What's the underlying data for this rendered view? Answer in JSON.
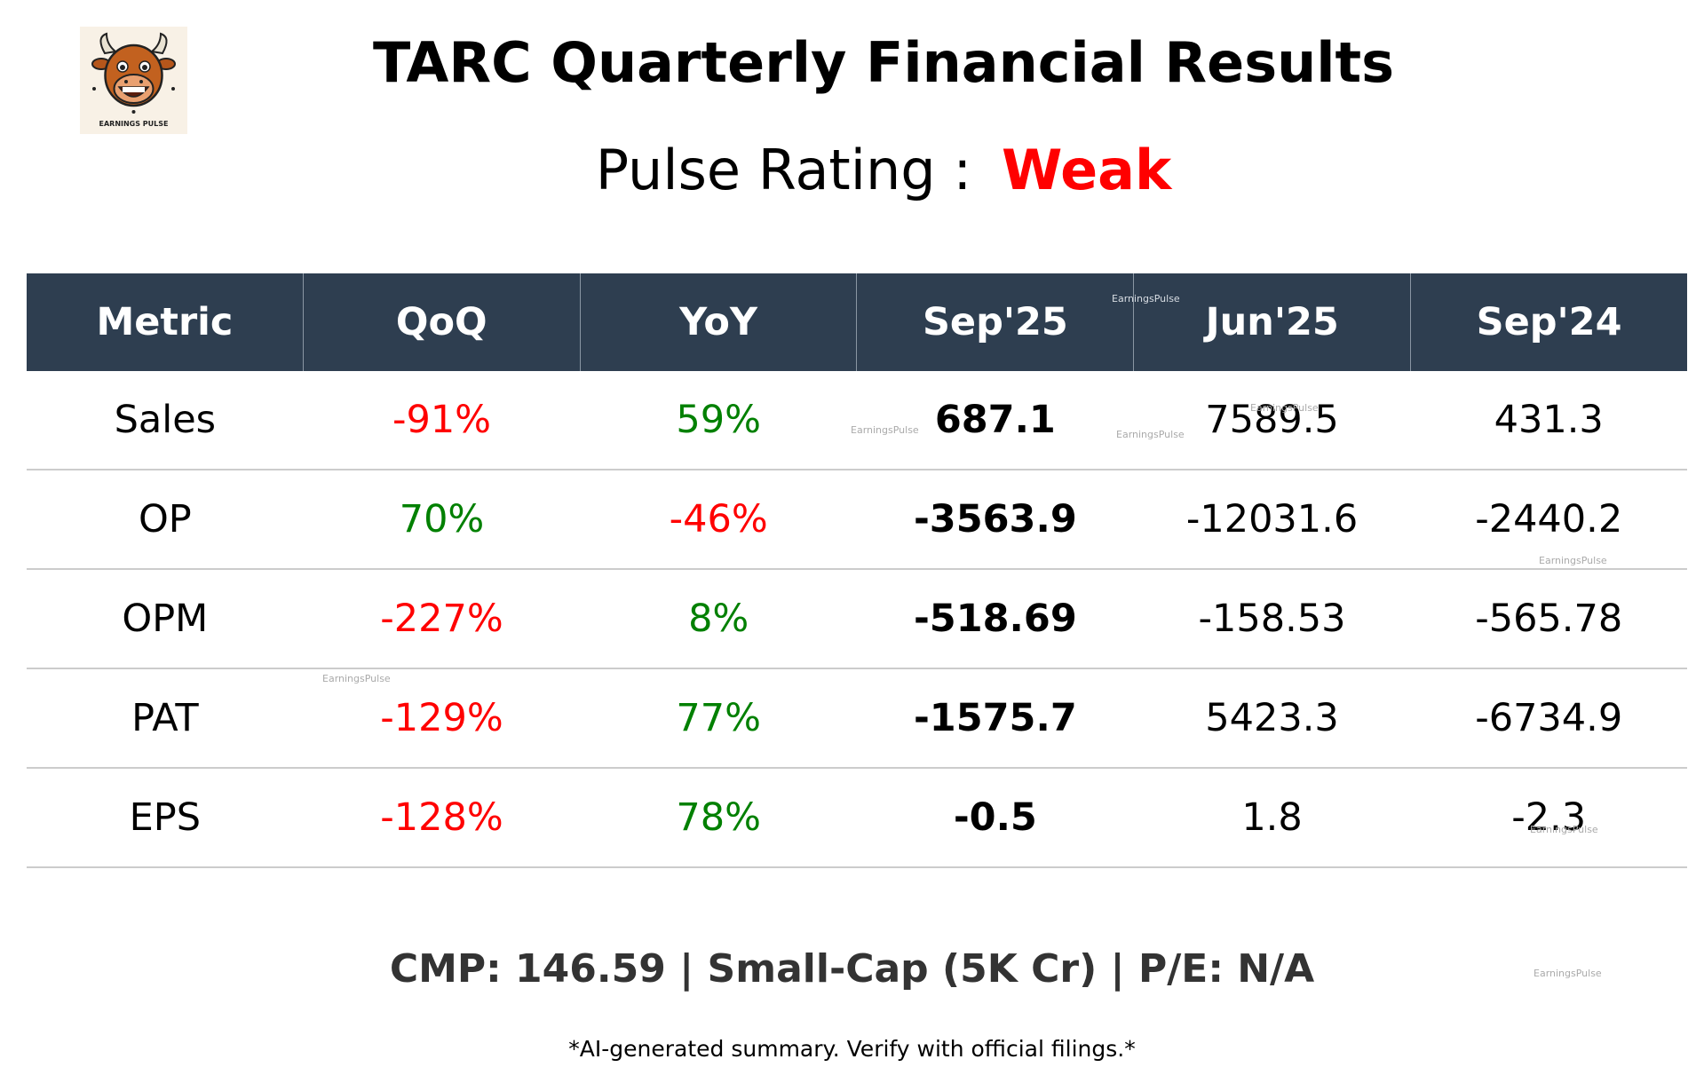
{
  "header": {
    "title": "TARC Quarterly Financial Results",
    "rating_label": "Pulse Rating :",
    "rating_value": "Weak",
    "logo_text": "EARNINGS PULSE"
  },
  "table": {
    "columns": [
      "Metric",
      "QoQ",
      "YoY",
      "Sep'25",
      "Jun'25",
      "Sep'24"
    ],
    "rows": [
      {
        "metric": "Sales",
        "qoq": "-91%",
        "yoy": "59%",
        "sep25": "687.1",
        "jun25": "7589.5",
        "sep24": "431.3"
      },
      {
        "metric": "OP",
        "qoq": "70%",
        "yoy": "-46%",
        "sep25": "-3563.9",
        "jun25": "-12031.6",
        "sep24": "-2440.2"
      },
      {
        "metric": "OPM",
        "qoq": "-227%",
        "yoy": "8%",
        "sep25": "-518.69",
        "jun25": "-158.53",
        "sep24": "-565.78"
      },
      {
        "metric": "PAT",
        "qoq": "-129%",
        "yoy": "77%",
        "sep25": "-1575.7",
        "jun25": "5423.3",
        "sep24": "-6734.9"
      },
      {
        "metric": "EPS",
        "qoq": "-128%",
        "yoy": "78%",
        "sep25": "-0.5",
        "jun25": "1.8",
        "sep24": "-2.3"
      }
    ]
  },
  "footer": {
    "stats": "CMP: 146.59 | Small-Cap (5K Cr) | P/E: N/A",
    "disclaimer": "*AI-generated summary. Verify with official filings.*"
  },
  "watermark": "EarningsPulse",
  "colors": {
    "header_bg": "#2e3e50",
    "negative": "#ff0000",
    "positive": "#008000",
    "rating": "#ff0000"
  }
}
